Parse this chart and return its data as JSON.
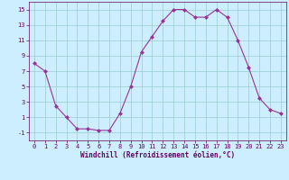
{
  "x": [
    0,
    1,
    2,
    3,
    4,
    5,
    6,
    7,
    8,
    9,
    10,
    11,
    12,
    13,
    14,
    15,
    16,
    17,
    18,
    19,
    20,
    21,
    22,
    23
  ],
  "y": [
    8,
    7,
    2.5,
    1,
    -0.5,
    -0.5,
    -0.7,
    -0.7,
    1.5,
    5,
    9.5,
    11.5,
    13.5,
    15,
    15,
    14,
    14,
    15,
    14,
    11,
    7.5,
    3.5,
    2,
    1.5
  ],
  "line_color": "#993399",
  "marker": "D",
  "marker_size": 2,
  "bg_color": "#cceeff",
  "grid_color": "#99cccc",
  "xlabel": "Windchill (Refroidissement éolien,°C)",
  "xlabel_color": "#660066",
  "tick_color": "#660066",
  "spine_color": "#660066",
  "ylim": [
    -2,
    16
  ],
  "xlim": [
    -0.5,
    23.5
  ],
  "yticks": [
    -1,
    1,
    3,
    5,
    7,
    9,
    11,
    13,
    15
  ],
  "xticks": [
    0,
    1,
    2,
    3,
    4,
    5,
    6,
    7,
    8,
    9,
    10,
    11,
    12,
    13,
    14,
    15,
    16,
    17,
    18,
    19,
    20,
    21,
    22,
    23
  ],
  "tick_fontsize": 5.0,
  "xlabel_fontsize": 5.5,
  "linewidth": 0.8
}
